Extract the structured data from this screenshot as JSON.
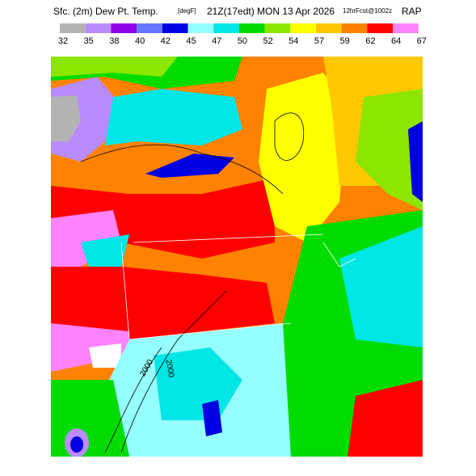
{
  "header": {
    "field": "Sfc. (2m) Dew Pt. Temp.",
    "units": "[degF]",
    "valid": "21Z(17edt) MON 13 Apr 2026",
    "forecast": "12hrFcst@1002z",
    "model": "RAP"
  },
  "colorbar": {
    "labels": [
      32,
      35,
      38,
      40,
      42,
      45,
      47,
      50,
      52,
      54,
      57,
      59,
      62,
      64,
      67
    ],
    "colors": [
      "#b4b4b4",
      "#b88cff",
      "#8c00e6",
      "#6478ff",
      "#0000e0",
      "#96ffff",
      "#00e6e6",
      "#00dc00",
      "#8ce600",
      "#ffff00",
      "#ffc800",
      "#ff8200",
      "#ff0000",
      "#ff82ff"
    ]
  },
  "contour_labels": [
    "2000",
    "2000"
  ]
}
